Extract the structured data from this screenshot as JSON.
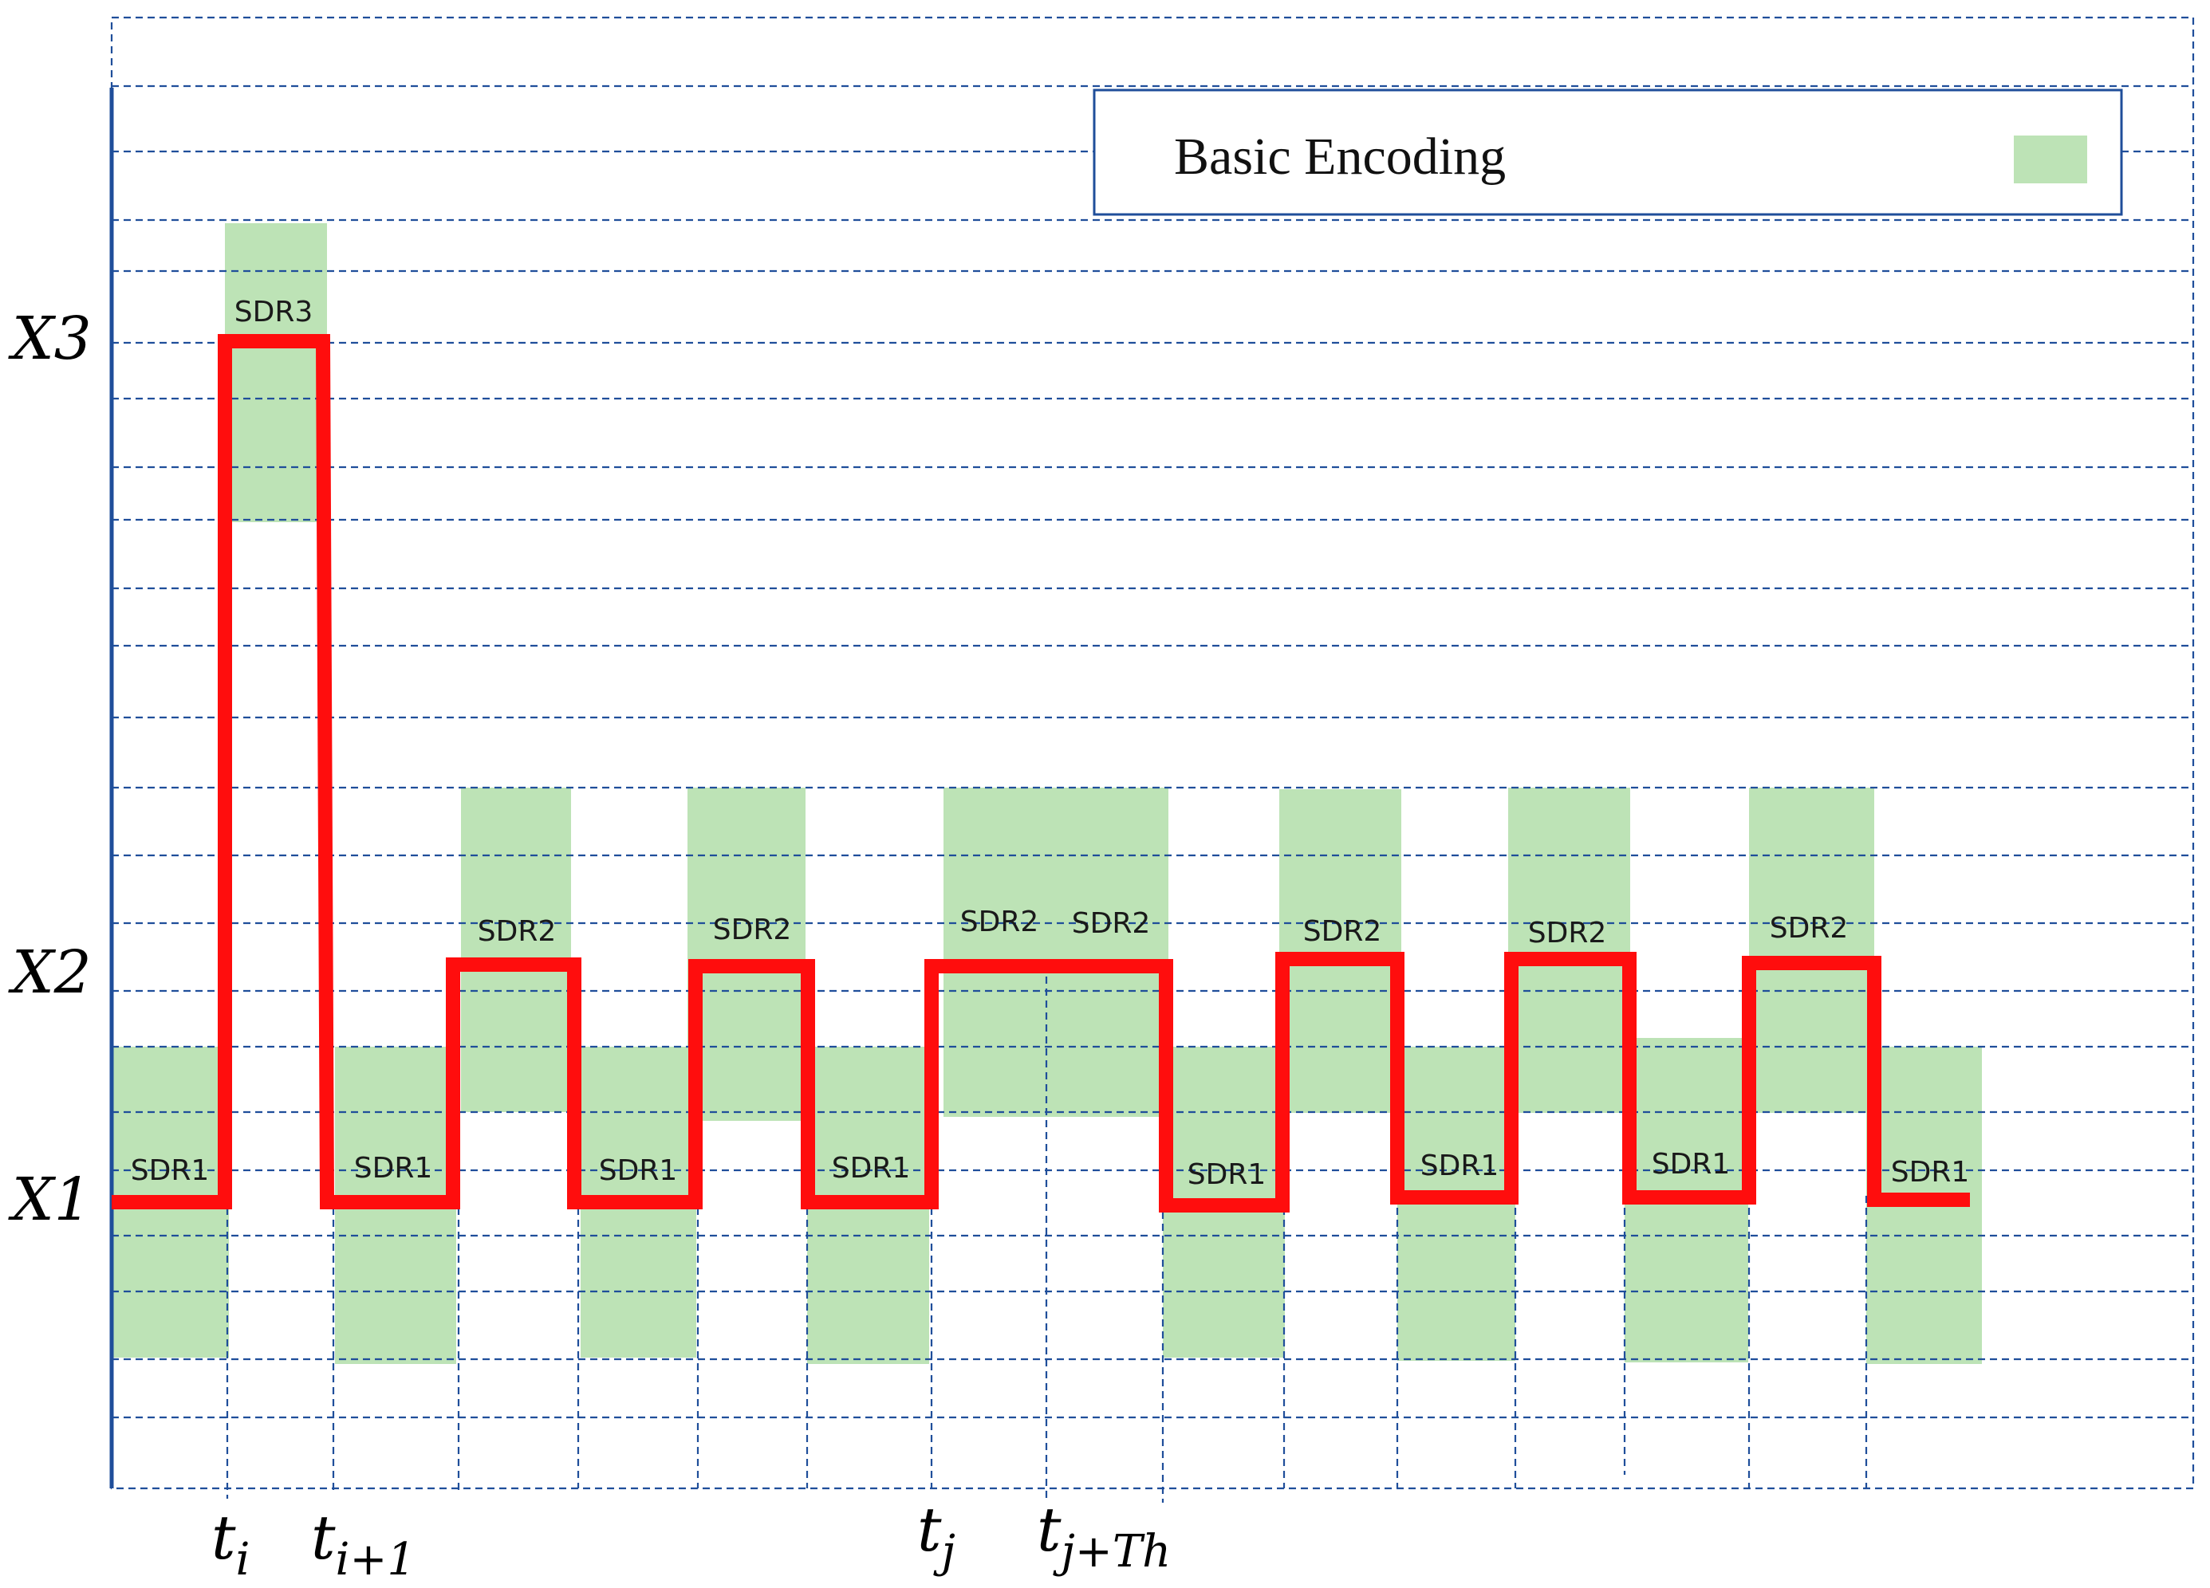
{
  "legend": {
    "label": "Basic Encoding",
    "swatch_color": "#bde3b6"
  },
  "levels": [
    {
      "name": "X1",
      "label": "X1"
    },
    {
      "name": "X2",
      "label": "X2"
    },
    {
      "name": "X3",
      "label": "X3"
    }
  ],
  "time_ticks": [
    {
      "main": "t",
      "sub": "i"
    },
    {
      "main": "t",
      "sub": "i+1"
    },
    {
      "main": "t",
      "sub": "j"
    },
    {
      "main": "t",
      "sub": "j+Th"
    }
  ],
  "signal_sequence": [
    "X1",
    "X3",
    "X1",
    "X2",
    "X1",
    "X2",
    "X1",
    "X2",
    "X2",
    "X1",
    "X2",
    "X1",
    "X2",
    "X1",
    "X2",
    "X1"
  ],
  "segment_labels": [
    "SDR1",
    "SDR3",
    "SDR1",
    "SDR2",
    "SDR1",
    "SDR2",
    "SDR1",
    "SDR2",
    "SDR2",
    "SDR1",
    "SDR2",
    "SDR1",
    "SDR2",
    "SDR1",
    "SDR2",
    "SDR1"
  ],
  "colors": {
    "signal": "#ff0d0d",
    "grid": "#1f4e9a",
    "band": "#bde3b6"
  }
}
